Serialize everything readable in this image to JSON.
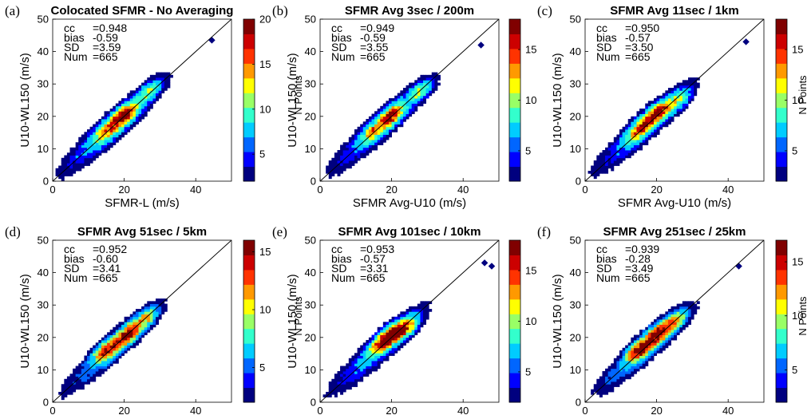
{
  "chart_data": [
    {
      "type": "heatmap",
      "panel_letter": "(a)",
      "title": "Colocated SFMR - No Averaging",
      "xlabel": "SFMR-L (m/s)",
      "ylabel": "U10-WL150 (m/s)",
      "colorbar_label": "",
      "xlim": [
        0,
        50
      ],
      "ylim": [
        0,
        50
      ],
      "xticks": [
        "0",
        "20",
        "40"
      ],
      "yticks": [
        "0",
        "10",
        "20",
        "30",
        "40",
        "50"
      ],
      "clim": [
        2,
        20
      ],
      "cbar_ticks": [
        "5",
        "10",
        "15",
        "20"
      ],
      "stats": [
        {
          "key": "cc",
          "value": "=0.948"
        },
        {
          "key": "bias",
          "value": "-0.59"
        },
        {
          "key": "SD",
          "value": "=3.59"
        },
        {
          "key": "Num",
          "value": "=665"
        }
      ],
      "contour_levels": [
        2,
        3.5,
        5,
        7.5,
        10,
        12.5,
        15,
        17.5
      ],
      "peaks": [
        {
          "x": 20,
          "y": 20.5,
          "value": 19
        },
        {
          "x": 15,
          "y": 15.5,
          "value": 13
        },
        {
          "x": 27,
          "y": 28,
          "value": 12
        }
      ],
      "max_value": 20,
      "isolated_points": [
        {
          "x": 44.5,
          "y": 43.5
        }
      ],
      "one_to_one_line": true
    },
    {
      "type": "heatmap",
      "panel_letter": "(b)",
      "title": "SFMR Avg 3sec / 200m",
      "xlabel": "SFMR Avg-U10 (m/s)",
      "ylabel": "U10-WL150 (m/s)",
      "colorbar_label": "N Points",
      "xlim": [
        0,
        50
      ],
      "ylim": [
        0,
        50
      ],
      "xticks": [
        "0",
        "20",
        "40"
      ],
      "yticks": [
        "0",
        "10",
        "20",
        "30",
        "40",
        "50"
      ],
      "clim": [
        2,
        18
      ],
      "cbar_ticks": [
        "5",
        "10",
        "15"
      ],
      "stats": [
        {
          "key": "cc",
          "value": "=0.949"
        },
        {
          "key": "bias",
          "value": "-0.59"
        },
        {
          "key": "SD",
          "value": "=3.55"
        },
        {
          "key": "Num",
          "value": "=665"
        }
      ],
      "contour_levels": [
        2,
        3.5,
        5,
        7.5,
        10,
        12.5,
        15,
        17.5
      ],
      "peaks": [
        {
          "x": 20,
          "y": 20.5,
          "value": 17
        },
        {
          "x": 15,
          "y": 15.5,
          "value": 12
        },
        {
          "x": 28,
          "y": 28,
          "value": 12
        }
      ],
      "max_value": 18,
      "isolated_points": [
        {
          "x": 45,
          "y": 42
        }
      ],
      "one_to_one_line": true
    },
    {
      "type": "heatmap",
      "panel_letter": "(c)",
      "title": "SFMR Avg 11sec / 1km",
      "xlabel": "SFMR Avg-U10 (m/s)",
      "ylabel": "U10-WL150 (m/s)",
      "colorbar_label": "N Points",
      "xlim": [
        0,
        50
      ],
      "ylim": [
        0,
        50
      ],
      "xticks": [
        "0",
        "20",
        "40"
      ],
      "yticks": [
        "0",
        "10",
        "20",
        "30",
        "40",
        "50"
      ],
      "clim": [
        2,
        18
      ],
      "cbar_ticks": [
        "5",
        "10",
        "15"
      ],
      "stats": [
        {
          "key": "cc",
          "value": "=0.950"
        },
        {
          "key": "bias",
          "value": "-0.57"
        },
        {
          "key": "SD",
          "value": "=3.50"
        },
        {
          "key": "Num",
          "value": "=665"
        }
      ],
      "contour_levels": [
        2,
        3.5,
        5,
        7.5,
        10,
        12.5,
        15,
        17.5
      ],
      "peaks": [
        {
          "x": 20,
          "y": 21,
          "value": 18
        },
        {
          "x": 15,
          "y": 16,
          "value": 14
        },
        {
          "x": 26,
          "y": 25,
          "value": 12
        }
      ],
      "max_value": 18,
      "isolated_points": [
        {
          "x": 45,
          "y": 43
        }
      ],
      "one_to_one_line": true
    },
    {
      "type": "heatmap",
      "panel_letter": "(d)",
      "title": "SFMR Avg 51sec / 5km",
      "xlabel": "SFMR Avg-U10 (m/s)",
      "ylabel": "U10-WL150 (m/s)",
      "colorbar_label": "",
      "xlim": [
        0,
        50
      ],
      "ylim": [
        0,
        50
      ],
      "xticks": [
        "0",
        "20",
        "40"
      ],
      "yticks": [
        "0",
        "10",
        "20",
        "30",
        "40",
        "50"
      ],
      "clim": [
        2,
        16
      ],
      "cbar_ticks": [
        "5",
        "10",
        "15"
      ],
      "stats": [
        {
          "key": "cc",
          "value": "=0.952"
        },
        {
          "key": "bias",
          "value": "-0.60"
        },
        {
          "key": "SD",
          "value": "=3.41"
        },
        {
          "key": "Num",
          "value": "=665"
        }
      ],
      "contour_levels": [
        2,
        3.5,
        5,
        7.5,
        10,
        12.5,
        15
      ],
      "peaks": [
        {
          "x": 21,
          "y": 21,
          "value": 16
        },
        {
          "x": 15,
          "y": 16,
          "value": 14
        },
        {
          "x": 26,
          "y": 26,
          "value": 11
        }
      ],
      "max_value": 16,
      "isolated_points": [],
      "one_to_one_line": true
    },
    {
      "type": "heatmap",
      "panel_letter": "(e)",
      "title": "SFMR Avg 101sec / 10km",
      "xlabel": "SFMR Avg-U10 (m/s)",
      "ylabel": "U10-WL150 (m/s)",
      "colorbar_label": "N Points",
      "xlim": [
        0,
        50
      ],
      "ylim": [
        0,
        50
      ],
      "xticks": [
        "0",
        "20",
        "40"
      ],
      "yticks": [
        "0",
        "10",
        "20",
        "30",
        "40",
        "50"
      ],
      "clim": [
        2,
        18
      ],
      "cbar_ticks": [
        "5",
        "10",
        "15"
      ],
      "stats": [
        {
          "key": "cc",
          "value": "=0.953"
        },
        {
          "key": "bias",
          "value": "-0.57"
        },
        {
          "key": "SD",
          "value": "=3.31"
        },
        {
          "key": "Num",
          "value": "=665"
        }
      ],
      "contour_levels": [
        2,
        3.5,
        5,
        7.5,
        10,
        12.5,
        15,
        17.5
      ],
      "peaks": [
        {
          "x": 20,
          "y": 21,
          "value": 17
        },
        {
          "x": 24,
          "y": 23,
          "value": 15
        },
        {
          "x": 17,
          "y": 18,
          "value": 13
        }
      ],
      "max_value": 18,
      "isolated_points": [
        {
          "x": 46,
          "y": 43
        },
        {
          "x": 48,
          "y": 42
        }
      ],
      "one_to_one_line": true
    },
    {
      "type": "heatmap",
      "panel_letter": "(f)",
      "title": "SFMR Avg 251sec / 25km",
      "xlabel": "SFMR Avg-U10 (m/s)",
      "ylabel": "U10-WL150 (m/s)",
      "colorbar_label": "N Points",
      "xlim": [
        0,
        50
      ],
      "ylim": [
        0,
        50
      ],
      "xticks": [
        "0",
        "20",
        "40"
      ],
      "yticks": [
        "0",
        "10",
        "20",
        "30",
        "40",
        "50"
      ],
      "clim": [
        2,
        17
      ],
      "cbar_ticks": [
        "5",
        "10",
        "15"
      ],
      "stats": [
        {
          "key": "cc",
          "value": "=0.939"
        },
        {
          "key": "bias",
          "value": "-0.28"
        },
        {
          "key": "SD",
          "value": "=3.49"
        },
        {
          "key": "Num",
          "value": "=665"
        }
      ],
      "contour_levels": [
        2,
        3.5,
        5,
        7.5,
        10,
        12.5,
        15
      ],
      "peaks": [
        {
          "x": 20,
          "y": 21,
          "value": 16
        },
        {
          "x": 15,
          "y": 16,
          "value": 15
        },
        {
          "x": 25,
          "y": 25,
          "value": 12
        }
      ],
      "max_value": 17,
      "isolated_points": [
        {
          "x": 43,
          "y": 42
        }
      ],
      "one_to_one_line": true
    }
  ],
  "colormap": [
    "#00007f",
    "#0000ff",
    "#0066ff",
    "#00ccff",
    "#33ffcc",
    "#99ff66",
    "#ffff00",
    "#ff9900",
    "#ff3300",
    "#cc0000",
    "#800000"
  ]
}
